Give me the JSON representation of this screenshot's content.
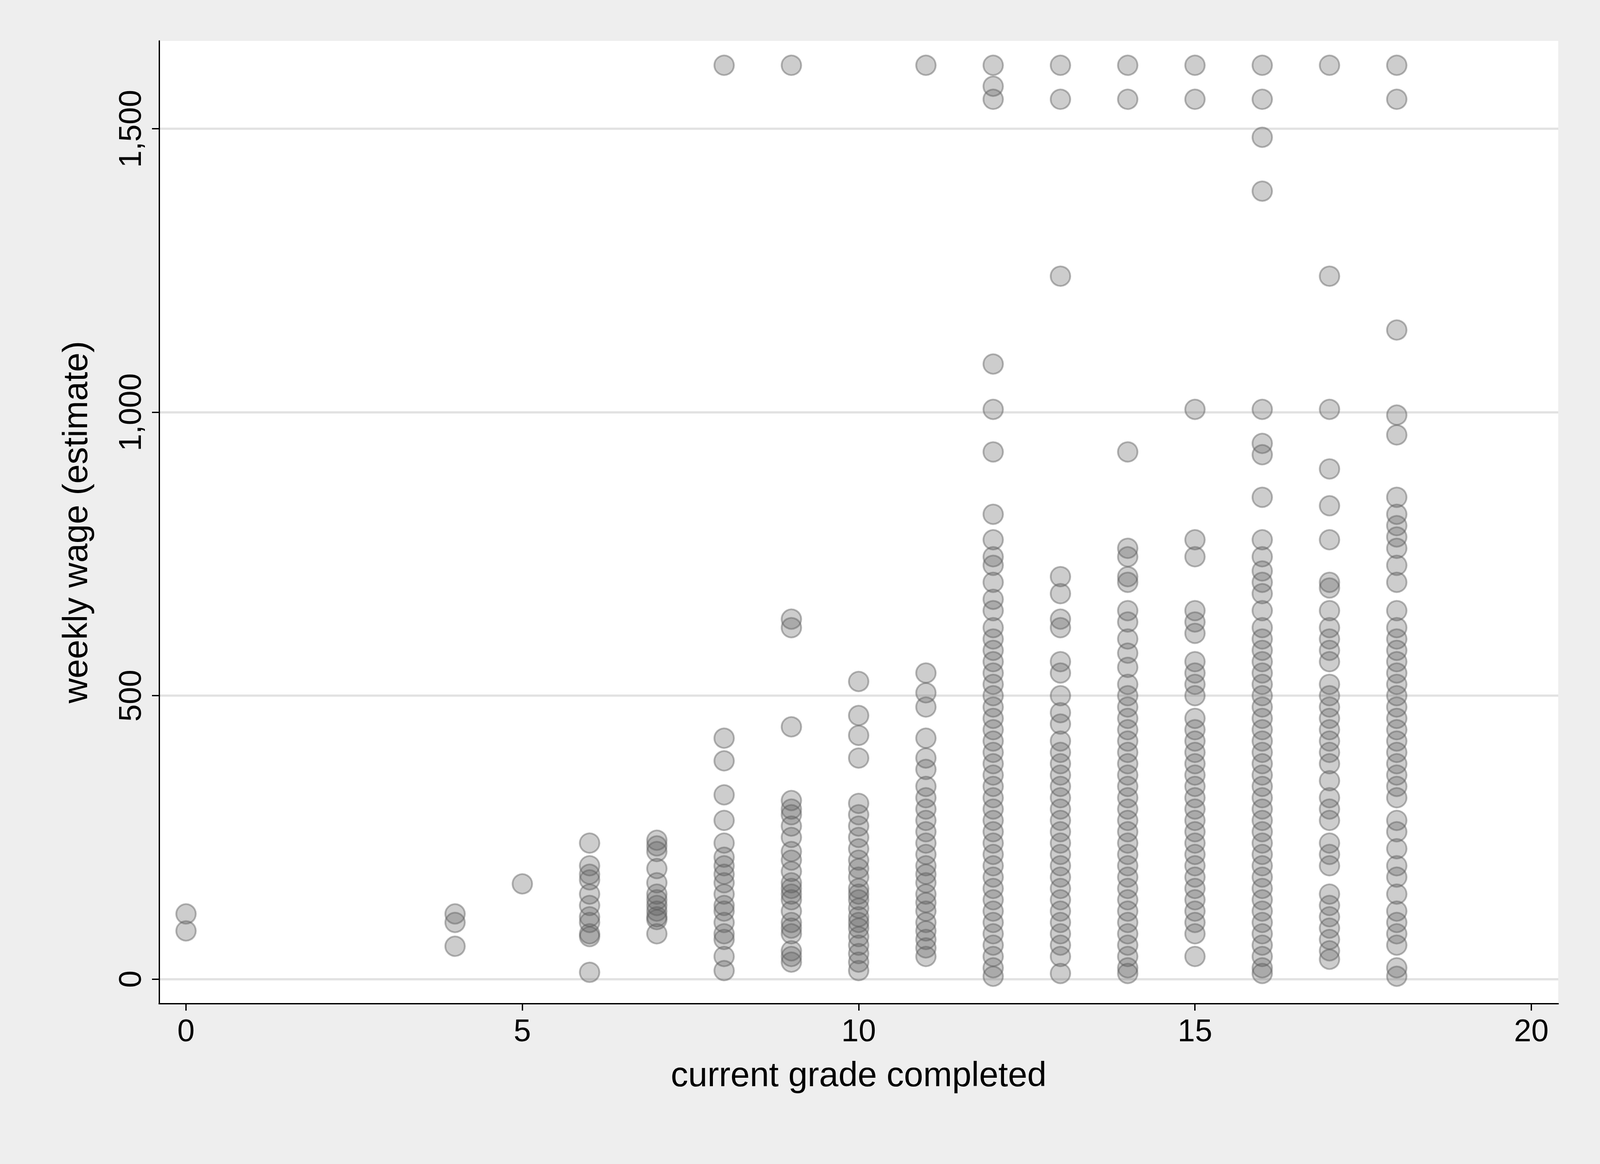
{
  "chart_data": {
    "type": "scatter",
    "x_label": "current grade completed",
    "y_label": "weekly wage (estimate)",
    "x": [
      0,
      4,
      5,
      6,
      7,
      8,
      9,
      10,
      11,
      12,
      13,
      14,
      15,
      16,
      17,
      18
    ],
    "values": [
      [
        115,
        85
      ],
      [
        115,
        100,
        58
      ],
      [
        168
      ],
      [
        240,
        200,
        185,
        175,
        150,
        130,
        110,
        100,
        80,
        75,
        12
      ],
      [
        245,
        235,
        225,
        195,
        170,
        150,
        140,
        130,
        120,
        110,
        105,
        80
      ],
      [
        1612,
        425,
        385,
        325,
        280,
        240,
        215,
        200,
        185,
        170,
        150,
        130,
        120,
        100,
        80,
        70,
        40,
        15
      ],
      [
        1612,
        635,
        620,
        445,
        315,
        300,
        290,
        270,
        250,
        225,
        210,
        190,
        170,
        160,
        150,
        140,
        120,
        100,
        90,
        80,
        50,
        40,
        30
      ],
      [
        525,
        465,
        430,
        390,
        310,
        290,
        270,
        250,
        230,
        210,
        195,
        180,
        160,
        150,
        140,
        125,
        110,
        100,
        90,
        75,
        60,
        45,
        30,
        15
      ],
      [
        1612,
        540,
        505,
        480,
        425,
        390,
        370,
        340,
        320,
        300,
        280,
        260,
        240,
        220,
        200,
        185,
        170,
        150,
        135,
        120,
        100,
        85,
        70,
        55,
        40
      ],
      [
        1612,
        1575,
        1552,
        1085,
        1005,
        930,
        820,
        775,
        745,
        730,
        700,
        670,
        650,
        620,
        600,
        580,
        560,
        540,
        520,
        500,
        480,
        460,
        440,
        420,
        400,
        380,
        360,
        340,
        320,
        300,
        280,
        260,
        240,
        220,
        200,
        180,
        160,
        140,
        120,
        100,
        80,
        60,
        40,
        20,
        5
      ],
      [
        1612,
        1552,
        1240,
        710,
        680,
        635,
        620,
        560,
        540,
        500,
        470,
        450,
        420,
        400,
        380,
        360,
        340,
        320,
        300,
        280,
        260,
        240,
        220,
        200,
        180,
        160,
        140,
        120,
        100,
        80,
        60,
        40,
        10
      ],
      [
        1612,
        1552,
        930,
        760,
        745,
        710,
        700,
        650,
        630,
        600,
        575,
        550,
        520,
        500,
        480,
        460,
        440,
        420,
        400,
        380,
        360,
        340,
        320,
        300,
        280,
        260,
        240,
        220,
        200,
        180,
        160,
        140,
        120,
        100,
        80,
        60,
        40,
        20,
        10
      ],
      [
        1612,
        1552,
        1005,
        775,
        745,
        650,
        630,
        610,
        560,
        540,
        520,
        500,
        460,
        440,
        420,
        400,
        380,
        360,
        340,
        320,
        300,
        280,
        260,
        240,
        220,
        200,
        180,
        160,
        140,
        120,
        100,
        80,
        40
      ],
      [
        1612,
        1552,
        1485,
        1390,
        1005,
        945,
        925,
        850,
        775,
        745,
        720,
        700,
        680,
        650,
        620,
        600,
        580,
        560,
        540,
        520,
        500,
        480,
        460,
        440,
        420,
        400,
        380,
        360,
        340,
        320,
        300,
        280,
        260,
        240,
        220,
        200,
        180,
        160,
        140,
        120,
        100,
        80,
        60,
        40,
        20,
        10
      ],
      [
        1612,
        1240,
        1005,
        900,
        835,
        775,
        700,
        690,
        650,
        620,
        600,
        580,
        560,
        520,
        500,
        480,
        460,
        440,
        420,
        400,
        380,
        350,
        320,
        300,
        280,
        240,
        220,
        200,
        150,
        130,
        110,
        90,
        70,
        50,
        35
      ],
      [
        1612,
        1552,
        1145,
        995,
        960,
        850,
        820,
        800,
        780,
        760,
        730,
        700,
        650,
        620,
        600,
        580,
        560,
        540,
        520,
        500,
        480,
        460,
        440,
        420,
        400,
        380,
        360,
        340,
        320,
        280,
        260,
        230,
        200,
        180,
        150,
        120,
        100,
        80,
        60,
        20,
        5
      ]
    ],
    "color": "#5a5a5a",
    "marker": "circle",
    "xlim": [
      -0.4,
      20.4
    ],
    "xticks": [
      0,
      5,
      10,
      15,
      20
    ],
    "ylim": [
      -43,
      1655
    ],
    "yticks": [
      0,
      500,
      1000,
      1500
    ],
    "grid": true
  }
}
